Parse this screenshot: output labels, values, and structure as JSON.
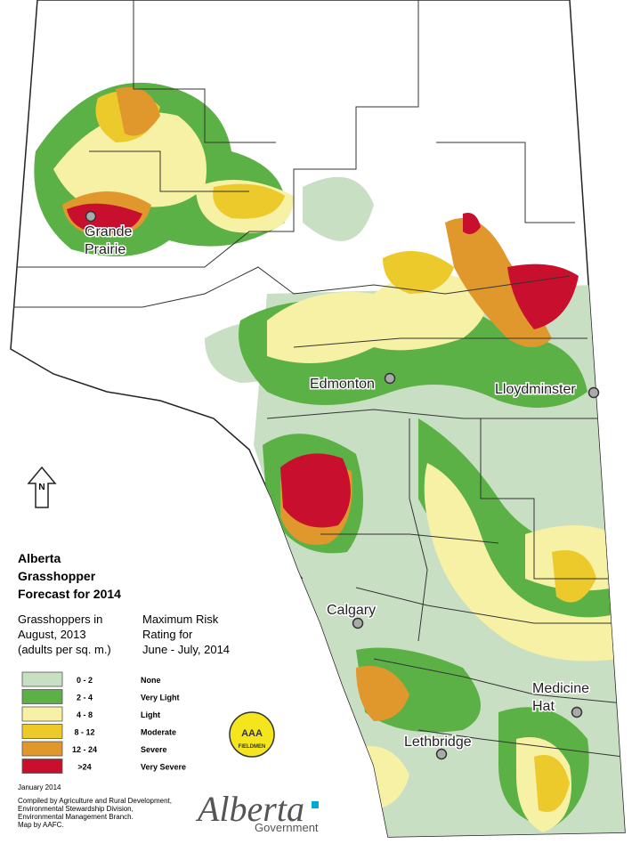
{
  "map": {
    "title_lines": [
      "Alberta",
      "Grasshopper",
      "Forecast for 2014"
    ],
    "legend": {
      "left_header": [
        "Grasshoppers in",
        "August, 2013",
        "(adults per sq. m.)"
      ],
      "right_header": [
        "Maximum Risk",
        "Rating for",
        "June - July, 2014"
      ],
      "items": [
        {
          "range": "0 - 2",
          "rating": "None",
          "color": "#c9dfc3"
        },
        {
          "range": "2 - 4",
          "rating": "Very Light",
          "color": "#5cb146"
        },
        {
          "range": "4 - 8",
          "rating": "Light",
          "color": "#f7f1a6"
        },
        {
          "range": "8 - 12",
          "rating": "Moderate",
          "color": "#ecca2c"
        },
        {
          "range": "12 - 24",
          "rating": "Severe",
          "color": "#e0982c"
        },
        {
          "range": ">24",
          "rating": "Very Severe",
          "color": "#c8102e"
        }
      ]
    },
    "cities": [
      {
        "lines": [
          "Grande",
          "Prairie"
        ]
      },
      {
        "lines": [
          "Edmonton"
        ]
      },
      {
        "lines": [
          "Lloydminster"
        ]
      },
      {
        "lines": [
          "Calgary"
        ]
      },
      {
        "lines": [
          "Medicine",
          "Hat"
        ]
      },
      {
        "lines": [
          "Lethbridge"
        ]
      }
    ],
    "north": "N",
    "badge": [
      "AAA",
      "FIELDMEN"
    ],
    "date": "January 2014",
    "credits": [
      "Compiled by Agriculture and Rural Development,",
      "Environmental Stewardship Division,",
      "Environmental Management Branch.",
      "Map by AAFC."
    ],
    "logo": {
      "name": "Alberta",
      "sub": "Government"
    }
  }
}
